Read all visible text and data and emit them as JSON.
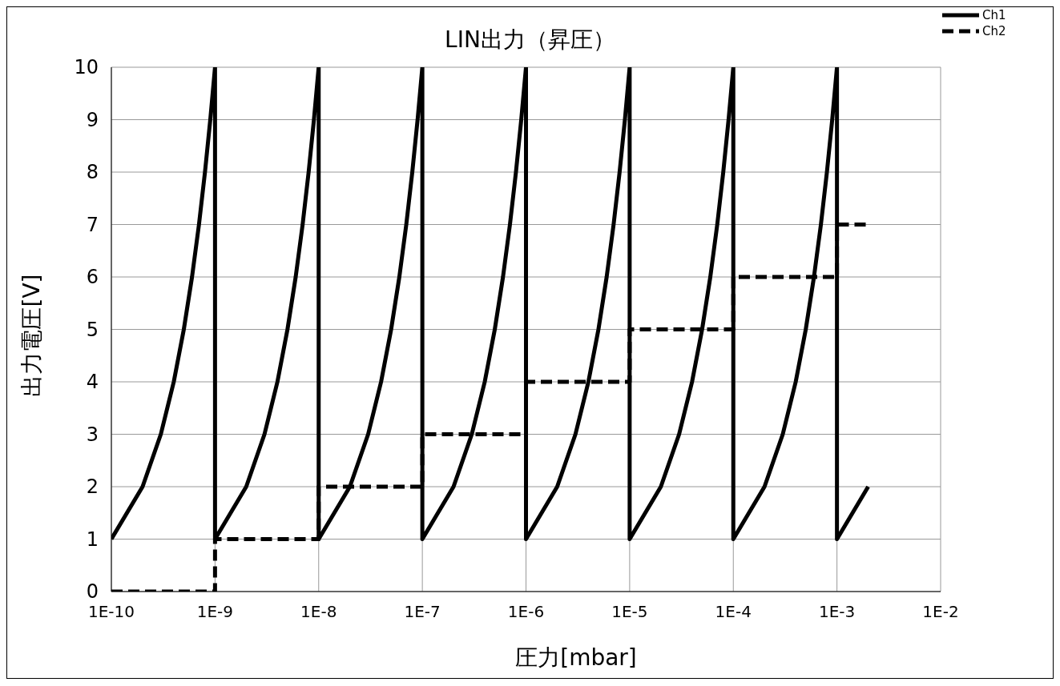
{
  "chart_data": {
    "type": "line",
    "title": "LIN出力（昇圧）",
    "xlabel": "圧力[mbar]",
    "ylabel": "出力電圧[V]",
    "log": "x",
    "grid": true,
    "legend": "top right",
    "marker": "none",
    "xlim": [
      1e-10,
      0.01
    ],
    "xticks": [
      {
        "value": 1e-10,
        "label": "1E-10"
      },
      {
        "value": 1e-09,
        "label": "1E-9"
      },
      {
        "value": 1e-08,
        "label": "1E-8"
      },
      {
        "value": 1e-07,
        "label": "1E-7"
      },
      {
        "value": 1e-06,
        "label": "1E-6"
      },
      {
        "value": 1e-05,
        "label": "1E-5"
      },
      {
        "value": 0.0001,
        "label": "1E-4"
      },
      {
        "value": 0.001,
        "label": "1E-3"
      },
      {
        "value": 0.01,
        "label": "1E-2"
      }
    ],
    "ylim": [
      0,
      10
    ],
    "yticks": [
      0,
      1,
      2,
      3,
      4,
      5,
      6,
      7,
      8,
      9,
      10
    ],
    "series": [
      {
        "name": "Ch1",
        "color": "#000000",
        "line_style": "solid",
        "x": [
          1e-10,
          2e-10,
          3e-10,
          4e-10,
          5e-10,
          6e-10,
          7e-10,
          8e-10,
          9e-10,
          1e-09,
          1e-09,
          2e-09,
          3e-09,
          4e-09,
          5e-09,
          6e-09,
          7e-09,
          8e-09,
          9e-09,
          1e-08,
          1e-08,
          2e-08,
          3e-08,
          4e-08,
          5e-08,
          6e-08,
          7e-08,
          8e-08,
          9e-08,
          1e-07,
          1e-07,
          2e-07,
          3e-07,
          4e-07,
          5e-07,
          6e-07,
          7e-07,
          8e-07,
          9e-07,
          1e-06,
          1e-06,
          2e-06,
          3e-06,
          4e-06,
          5e-06,
          6e-06,
          7e-06,
          8e-06,
          9e-06,
          1e-05,
          1e-05,
          2e-05,
          3e-05,
          4e-05,
          5e-05,
          6e-05,
          7e-05,
          8e-05,
          9e-05,
          0.0001,
          0.0001,
          0.0002,
          0.0003,
          0.0004,
          0.0005,
          0.0006,
          0.0007,
          0.0008,
          0.0009,
          0.001,
          0.001,
          0.002
        ],
        "values": [
          1,
          2,
          3,
          4,
          5,
          6,
          7,
          8,
          9,
          10,
          1,
          2,
          3,
          4,
          5,
          6,
          7,
          8,
          9,
          10,
          1,
          2,
          3,
          4,
          5,
          6,
          7,
          8,
          9,
          10,
          1,
          2,
          3,
          4,
          5,
          6,
          7,
          8,
          9,
          10,
          1,
          2,
          3,
          4,
          5,
          6,
          7,
          8,
          9,
          10,
          1,
          2,
          3,
          4,
          5,
          6,
          7,
          8,
          9,
          10,
          1,
          2,
          3,
          4,
          5,
          6,
          7,
          8,
          9,
          10,
          1,
          2
        ]
      },
      {
        "name": "Ch2",
        "color": "#000000",
        "line_style": "dashed",
        "x": [
          1e-10,
          1e-09,
          1e-09,
          1e-08,
          1e-08,
          1e-07,
          1e-07,
          1e-06,
          1e-06,
          1e-05,
          1e-05,
          0.0001,
          0.0001,
          0.001,
          0.001,
          0.002
        ],
        "values": [
          0,
          0,
          1,
          1,
          2,
          2,
          3,
          3,
          4,
          4,
          5,
          5,
          6,
          6,
          7,
          7
        ]
      }
    ]
  }
}
